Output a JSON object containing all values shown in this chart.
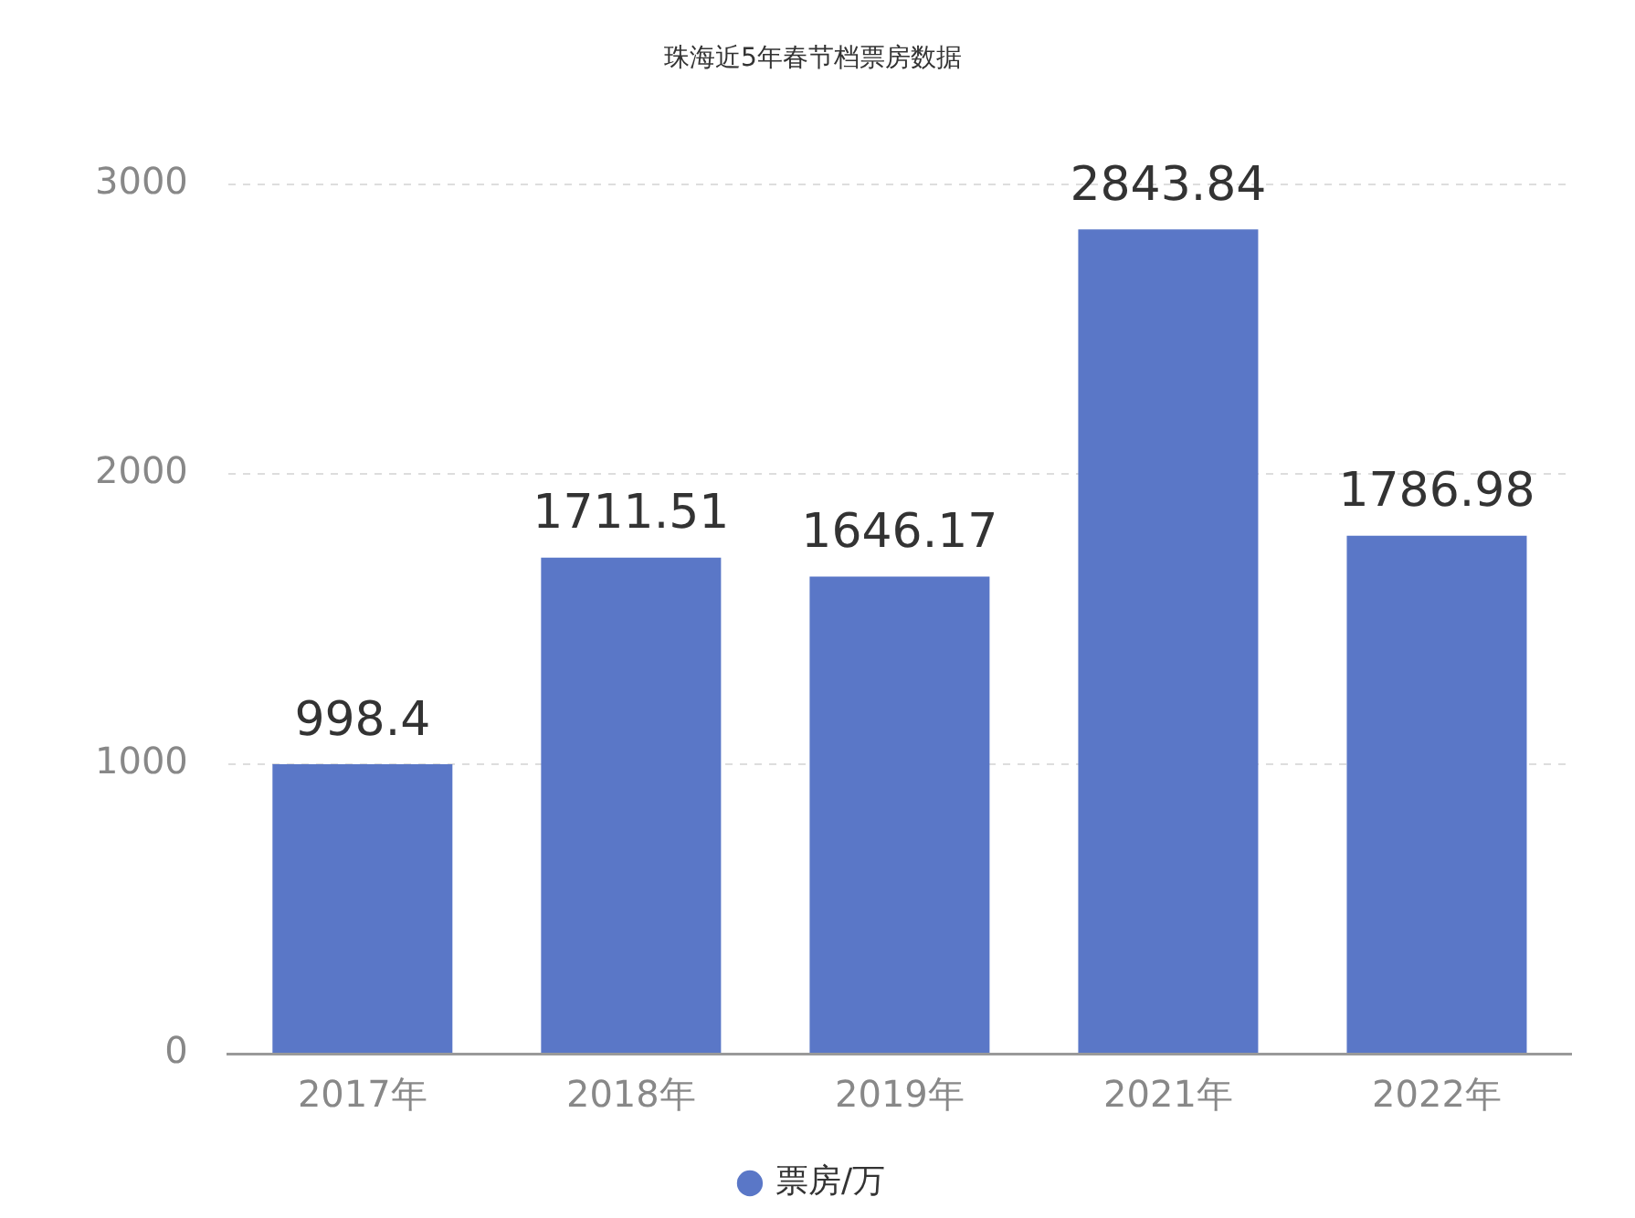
{
  "chart_data": {
    "type": "bar",
    "title": "珠海近5年春节档票房数据",
    "categories": [
      "2017年",
      "2018年",
      "2019年",
      "2021年",
      "2022年"
    ],
    "series": [
      {
        "name": "票房/万",
        "color": "#5a77c7",
        "values": [
          998.4,
          1711.51,
          1646.17,
          2843.84,
          1786.98
        ]
      }
    ],
    "ylim": [
      0,
      3000
    ],
    "yticks": [
      0,
      1000,
      2000,
      3000
    ],
    "grid": "y",
    "legend": "bottom",
    "data_labels": true
  }
}
